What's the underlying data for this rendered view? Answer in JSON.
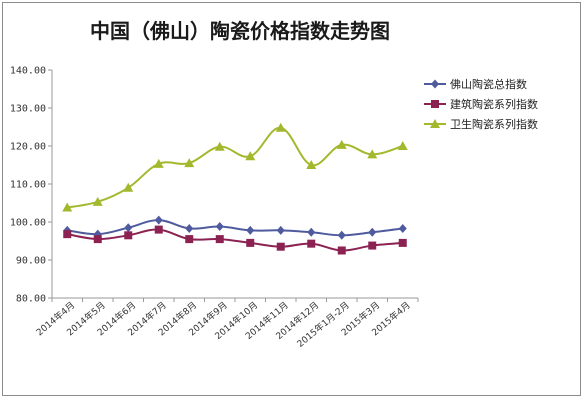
{
  "chart_data": {
    "type": "line",
    "title": "中国（佛山）陶瓷价格指数走势图",
    "xlabel": "",
    "ylabel": "",
    "ylim": [
      80,
      140
    ],
    "yticks": [
      "80.00",
      "90.00",
      "100.00",
      "110.00",
      "120.00",
      "130.00",
      "140.00"
    ],
    "grid": false,
    "legend_position": "right",
    "categories": [
      "2014年4月",
      "2014年5月",
      "2014年6月",
      "2014年7月",
      "2014年8月",
      "2014年9月",
      "2014年10月",
      "2014年11月",
      "2014年12月",
      "2015年1月-2月",
      "2015年3月",
      "2015年4月"
    ],
    "series": [
      {
        "name": "佛山陶瓷总指数",
        "color": "#4F5B9E",
        "marker": "diamond",
        "values": [
          97.8,
          96.8,
          98.5,
          100.5,
          98.3,
          98.8,
          97.8,
          97.8,
          97.3,
          96.5,
          97.3,
          98.3
        ]
      },
      {
        "name": "建筑陶瓷系列指数",
        "color": "#8B2252",
        "marker": "square",
        "values": [
          96.8,
          95.5,
          96.5,
          98.0,
          95.5,
          95.5,
          94.5,
          93.5,
          94.3,
          92.5,
          93.8,
          94.5
        ]
      },
      {
        "name": "卫生陶瓷系列指数",
        "color": "#A4B82E",
        "marker": "triangle",
        "values": [
          103.8,
          105.3,
          109.0,
          115.3,
          115.5,
          119.8,
          117.3,
          124.8,
          115.0,
          120.3,
          117.8,
          120.0
        ]
      }
    ]
  }
}
